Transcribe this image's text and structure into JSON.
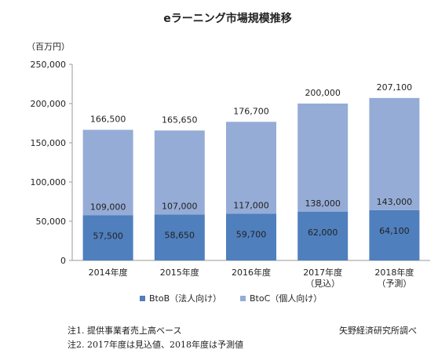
{
  "chart_data": {
    "type": "bar",
    "stacked": true,
    "title": "eラーニング市場規模推移",
    "unit_label": "（百万円）",
    "categories": [
      [
        "2014年度"
      ],
      [
        "2015年度"
      ],
      [
        "2016年度"
      ],
      [
        "2017年度",
        "（見込）"
      ],
      [
        "2018年度",
        "（予測）"
      ]
    ],
    "series": [
      {
        "name": "BtoB（法人向け）",
        "color": "#4f7fbd",
        "values": [
          57500,
          58650,
          59700,
          62000,
          64100
        ]
      },
      {
        "name": "BtoC（個人向け）",
        "color": "#95acd6",
        "values": [
          109000,
          107000,
          117000,
          138000,
          143000
        ]
      }
    ],
    "totals": [
      166500,
      165650,
      176700,
      200000,
      207100
    ],
    "total_labels": [
      "166,500",
      "165,650",
      "176,700",
      "200,000",
      "207,100"
    ],
    "btob_labels": [
      "57,500",
      "58,650",
      "59,700",
      "62,000",
      "64,100"
    ],
    "btoc_labels": [
      "109,000",
      "107,000",
      "117,000",
      "138,000",
      "143,000"
    ],
    "ylim": [
      0,
      250000
    ],
    "yticks": [
      0,
      50000,
      100000,
      150000,
      200000,
      250000
    ],
    "ytick_labels": [
      "0",
      "50,000",
      "100,000",
      "150,000",
      "200,000",
      "250,000"
    ],
    "grid": false,
    "legend_position": "bottom"
  },
  "notes": {
    "note1": "注1. 提供事業者売上高ベース",
    "note2": "注2. 2017年度は見込値、2018年度は予測値",
    "source": "矢野経済研究所調べ"
  }
}
